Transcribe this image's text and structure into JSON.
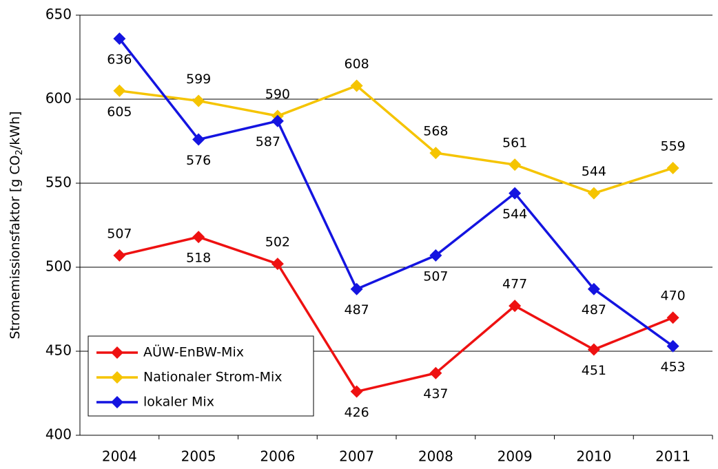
{
  "chart_data": {
    "type": "line",
    "ylabel": [
      "Stromemissionsfaktor [g CO",
      "2",
      "/kWh]"
    ],
    "categories": [
      "2004",
      "2005",
      "2006",
      "2007",
      "2008",
      "2009",
      "2010",
      "2011"
    ],
    "series": [
      {
        "name": "AÜW-EnBW-Mix",
        "color": "#ee1111",
        "label_color": "#ee1111",
        "values": [
          507,
          518,
          502,
          426,
          437,
          477,
          451,
          470
        ]
      },
      {
        "name": "Nationaler Strom-Mix",
        "color": "#f5c400",
        "label_color": "#000000",
        "values": [
          605,
          599,
          590,
          608,
          568,
          561,
          544,
          559
        ]
      },
      {
        "name": "lokaler Mix",
        "color": "#1414e0",
        "label_color": "#1414e0",
        "values": [
          636,
          576,
          587,
          487,
          507,
          544,
          487,
          453
        ]
      }
    ],
    "ylim": [
      400,
      650
    ],
    "yticks": [
      400,
      450,
      500,
      550,
      600,
      650
    ],
    "grid": true,
    "legend": "lower left"
  }
}
